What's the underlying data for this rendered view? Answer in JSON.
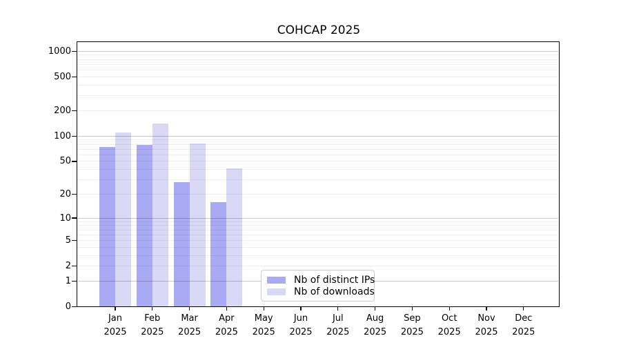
{
  "chart_data": {
    "type": "bar",
    "title": "COHCAP 2025",
    "categories": [
      "Jan",
      "Feb",
      "Mar",
      "Apr",
      "May",
      "Jun",
      "Jul",
      "Aug",
      "Sep",
      "Oct",
      "Nov",
      "Dec"
    ],
    "x_tick_line2": "2025",
    "series": [
      {
        "name": "Nb of distinct IPs",
        "color": "#a9a9f4",
        "values": [
          75,
          79,
          28,
          16,
          0,
          0,
          0,
          0,
          0,
          0,
          0,
          0
        ]
      },
      {
        "name": "Nb of downloads",
        "color": "#d9d9f6",
        "values": [
          110,
          142,
          82,
          41,
          0,
          0,
          0,
          0,
          0,
          0,
          0,
          0
        ]
      }
    ],
    "y_ticks": [
      0,
      1,
      2,
      5,
      10,
      20,
      50,
      100,
      200,
      500,
      1000
    ],
    "y_major_gridlines": [
      1,
      10,
      100,
      1000
    ],
    "y_minor_gridlines": [
      2,
      3,
      4,
      5,
      6,
      7,
      8,
      9,
      20,
      30,
      40,
      50,
      60,
      70,
      80,
      90,
      200,
      300,
      400,
      500,
      600,
      700,
      800,
      900
    ],
    "scale": "y proportional to log10(value+1)",
    "ylim": [
      0,
      1280
    ],
    "grid": true,
    "legend_position": "inside plot, lower center",
    "frame_color": "#000000",
    "background_color": "#ffffff"
  }
}
